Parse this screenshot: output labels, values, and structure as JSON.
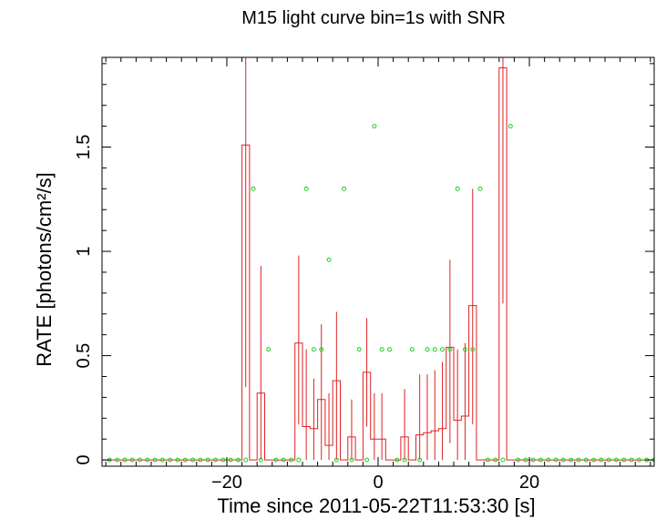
{
  "chart_data": {
    "type": "line",
    "title": "M15 light curve bin=1s with SNR",
    "xlabel": "Time since 2011-05-22T11:53:30 [s]",
    "ylabel": "RATE [photons/cm²/s]",
    "xlim": [
      -36.5,
      36.5
    ],
    "ylim": [
      -0.03,
      1.93
    ],
    "grid": false,
    "x_ticks": [
      -20,
      0,
      20
    ],
    "x_tick_labels": [
      "−20",
      "0",
      "20"
    ],
    "y_ticks": [
      0,
      0.5,
      1,
      1.5
    ],
    "y_tick_labels": [
      "0",
      "0.5",
      "1",
      "1.5"
    ],
    "colors": {
      "rate": "#dd2222",
      "snr": "#22cc22",
      "axes": "#000000"
    },
    "series": [
      {
        "style": "histogram-step-with-error-bars",
        "bins": [
          {
            "x0": -18,
            "x1": -17,
            "y": 1.51,
            "lo": 0.35,
            "hi": 1.93
          },
          {
            "x0": -16,
            "x1": -15,
            "y": 0.32,
            "lo": 0.0,
            "hi": 0.93
          },
          {
            "x0": -11,
            "x1": -10,
            "y": 0.56,
            "lo": 0.17,
            "hi": 0.98
          },
          {
            "x0": -10,
            "x1": -9,
            "y": 0.16,
            "lo": 0.0,
            "hi": 0.53
          },
          {
            "x0": -9,
            "x1": -8,
            "y": 0.15,
            "lo": 0.0,
            "hi": 0.39
          },
          {
            "x0": -8,
            "x1": -7,
            "y": 0.29,
            "lo": 0.0,
            "hi": 0.65
          },
          {
            "x0": -7,
            "x1": -6,
            "y": 0.07,
            "lo": 0.0,
            "hi": 0.32
          },
          {
            "x0": -6,
            "x1": -5,
            "y": 0.38,
            "lo": 0.0,
            "hi": 0.71
          },
          {
            "x0": -5,
            "x1": -4,
            "y": 0.0,
            "lo": 0.0,
            "hi": 0.0
          },
          {
            "x0": -4,
            "x1": -3,
            "y": 0.11,
            "lo": 0.0,
            "hi": 0.29
          },
          {
            "x0": -2,
            "x1": -1,
            "y": 0.42,
            "lo": 0.16,
            "hi": 0.68
          },
          {
            "x0": -1,
            "x1": 0,
            "y": 0.1,
            "lo": 0.0,
            "hi": 0.32
          },
          {
            "x0": 0,
            "x1": 1,
            "y": 0.1,
            "lo": 0.0,
            "hi": 0.32
          },
          {
            "x0": 3,
            "x1": 4,
            "y": 0.11,
            "lo": 0.0,
            "hi": 0.34
          },
          {
            "x0": 5,
            "x1": 6,
            "y": 0.12,
            "lo": 0.0,
            "hi": 0.41
          },
          {
            "x0": 6,
            "x1": 7,
            "y": 0.13,
            "lo": 0.0,
            "hi": 0.41
          },
          {
            "x0": 7,
            "x1": 8,
            "y": 0.14,
            "lo": 0.0,
            "hi": 0.43
          },
          {
            "x0": 8,
            "x1": 9,
            "y": 0.15,
            "lo": 0.0,
            "hi": 0.47
          },
          {
            "x0": 9,
            "x1": 10,
            "y": 0.54,
            "lo": 0.08,
            "hi": 0.96
          },
          {
            "x0": 10,
            "x1": 11,
            "y": 0.19,
            "lo": 0.0,
            "hi": 0.53
          },
          {
            "x0": 11,
            "x1": 12,
            "y": 0.21,
            "lo": 0.0,
            "hi": 0.56
          },
          {
            "x0": 12,
            "x1": 13,
            "y": 0.74,
            "lo": 0.17,
            "hi": 1.3
          },
          {
            "x0": 16,
            "x1": 17,
            "y": 1.88,
            "lo": 0.75,
            "hi": 1.93
          }
        ]
      },
      {
        "style": "points",
        "x": [
          -36,
          -35,
          -34,
          -33,
          -32,
          -31,
          -30,
          -29,
          -28,
          -27,
          -26,
          -25,
          -24,
          -23,
          -22,
          -21,
          -20,
          -19,
          -18,
          -17,
          -16,
          -15,
          -14,
          -13,
          -12,
          -11,
          -10,
          -9,
          -8,
          -7,
          -6,
          -5,
          -4,
          -3,
          -2,
          -1,
          0,
          1,
          2,
          3,
          4,
          5,
          6,
          7,
          8,
          9,
          10,
          11,
          12,
          13,
          14,
          15,
          16,
          17,
          18,
          19,
          20,
          21,
          22,
          23,
          24,
          25,
          26,
          27,
          28,
          29,
          30,
          31,
          32,
          33,
          34,
          35,
          36
        ],
        "y": [
          0,
          0,
          0,
          0,
          0,
          0,
          0,
          0,
          0,
          0,
          0,
          0,
          0,
          0,
          0,
          0,
          0,
          0,
          0,
          1.3,
          0,
          0.53,
          0,
          0,
          0,
          0,
          1.3,
          0.53,
          0.53,
          0.96,
          0,
          1.3,
          0,
          0.53,
          0,
          1.6,
          0.53,
          0.53,
          0,
          0,
          0.53,
          0,
          0.53,
          0.53,
          0.53,
          0.53,
          1.3,
          0.53,
          0.53,
          1.3,
          0,
          0,
          0,
          1.6,
          0,
          0,
          0,
          0,
          0,
          0,
          0,
          0,
          0,
          0,
          0,
          0,
          0,
          0,
          0,
          0,
          0,
          0,
          0
        ]
      }
    ]
  }
}
